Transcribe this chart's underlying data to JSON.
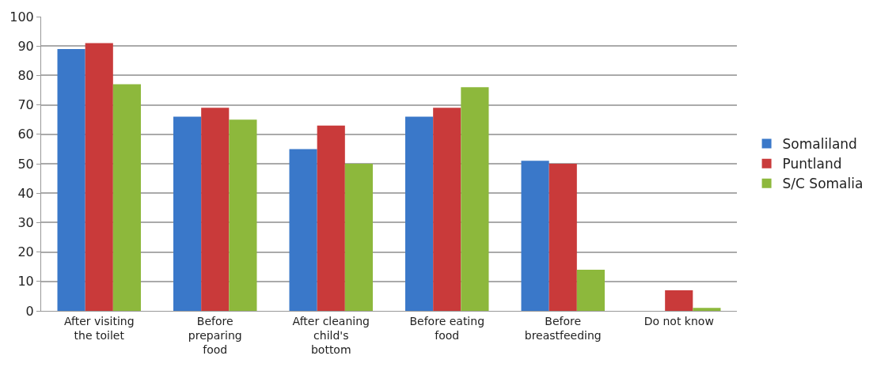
{
  "chart_data": {
    "type": "bar",
    "categories": [
      "After visiting\nthe toilet",
      "Before\npreparing\nfood",
      "After cleaning\nchild's\nbottom",
      "Before eating\nfood",
      "Before\nbreastfeeding",
      "Do not know"
    ],
    "series": [
      {
        "name": "Somaliland",
        "color": "#3a78c9",
        "values": [
          89,
          66,
          55,
          66,
          51,
          0
        ]
      },
      {
        "name": "Puntland",
        "color": "#c93a3a",
        "values": [
          91,
          69,
          63,
          69,
          50,
          7
        ]
      },
      {
        "name": "S/C Somalia",
        "color": "#8db83c",
        "values": [
          77,
          65,
          50,
          76,
          14,
          1
        ]
      }
    ],
    "ylim": [
      0,
      100
    ],
    "yticks": [
      0,
      10,
      20,
      30,
      40,
      50,
      60,
      70,
      80,
      90,
      100
    ],
    "grid": "y",
    "legend": "right"
  }
}
